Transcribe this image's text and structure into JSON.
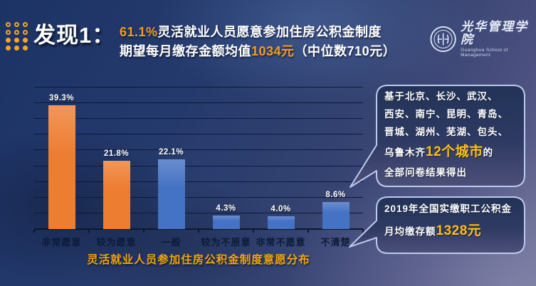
{
  "slide": {
    "title": "发现1：",
    "headline": {
      "line1_accent": "61.1%",
      "line1_text": "灵活就业人员愿意参加住房公积金制度",
      "line2_pre": "期望每月缴存金额均值",
      "line2_accent": "1034元",
      "line2_post": "（中位数710元）"
    },
    "logo": {
      "cn": "光华管理学院",
      "en": "Guanghua School of Management"
    }
  },
  "chart_data": {
    "type": "bar",
    "title": "灵活就业人员参加住房公积金制度意愿分布",
    "categories": [
      "非常愿意",
      "较为愿意",
      "一般",
      "较为不原意",
      "非常不愿意",
      "不清楚"
    ],
    "values": [
      39.3,
      21.8,
      22.1,
      4.3,
      4.0,
      8.6
    ],
    "value_labels": [
      "39.3%",
      "21.8%",
      "22.1%",
      "4.3%",
      "4.0%",
      "8.6%"
    ],
    "bar_colors": [
      "#ED7D31",
      "#ED7D31",
      "#4472C4",
      "#4472C4",
      "#4472C4",
      "#4472C4"
    ],
    "xlabel": "",
    "ylabel": "",
    "ylim": [
      0,
      45
    ],
    "grid_step": 5,
    "grid": "horizontal-only",
    "legend": "none"
  },
  "callout1": {
    "line1": "基于北京、长沙、武汉、",
    "line2": "西安、南宁、昆明、青岛、",
    "line3": "晋城、湖州、芜湖、包头、",
    "line4_pre": "乌鲁木齐",
    "line4_accent": "12个城市",
    "line4_post": "的",
    "line5": "全部问卷结果得出"
  },
  "callout2": {
    "line1": "2019年全国实缴职工公积金",
    "line2_pre": "月均缴存额",
    "line2_accent": "1328元"
  },
  "colors": {
    "accent_orange": "#F59B22",
    "accent_yellow": "#FFC012",
    "caption_orange": "#F2A60A",
    "bar_orange": "#ED7D31",
    "bar_blue": "#4472C4",
    "background_navy": "#253a6c",
    "gridline": "#0e1a33"
  }
}
